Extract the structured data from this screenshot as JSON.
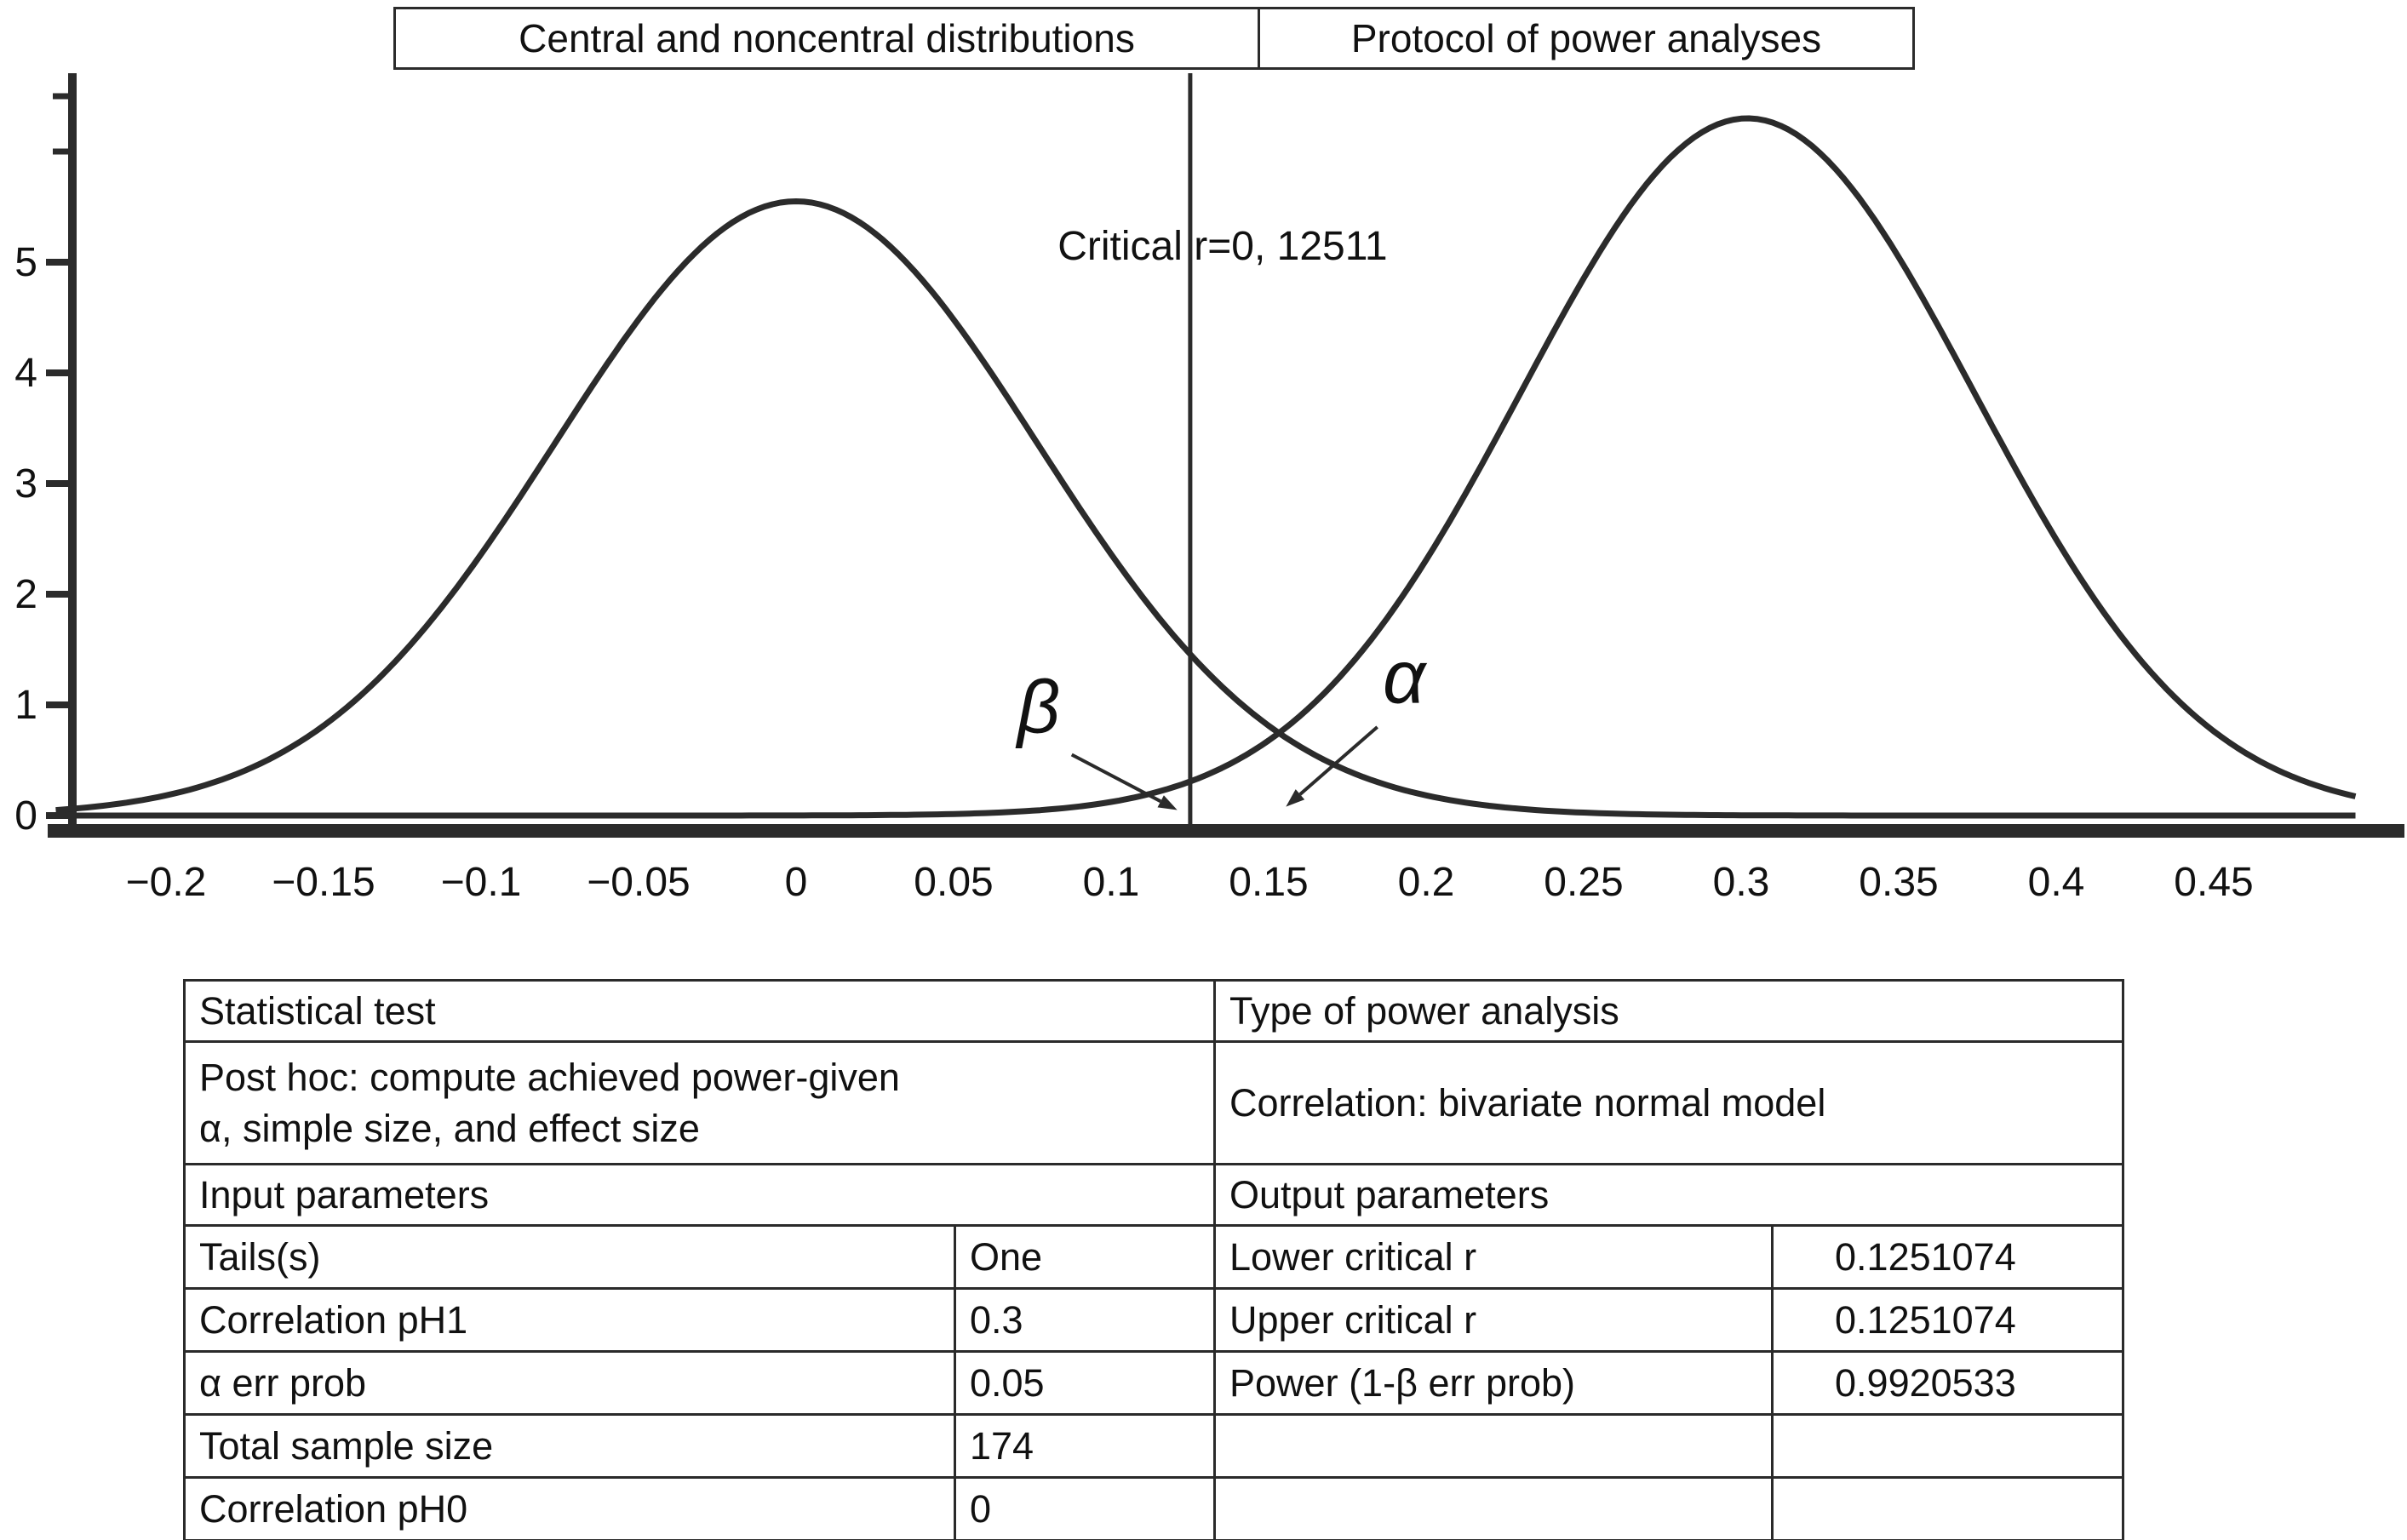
{
  "tabs": [
    {
      "label": "Central and noncentral distributions"
    },
    {
      "label": "Protocol of power analyses"
    }
  ],
  "chart_data": {
    "type": "line",
    "title": "Central and noncentral distributions",
    "xlabel": "",
    "ylabel": "",
    "xlim": [
      -0.235,
      0.495
    ],
    "ylim": [
      0,
      6.6
    ],
    "grid": false,
    "legend": "none",
    "color": "#2b2b2b",
    "x_ticks": [
      -0.2,
      -0.15,
      -0.1,
      -0.05,
      0,
      0.05,
      0.1,
      0.15,
      0.2,
      0.25,
      0.3,
      0.35,
      0.4,
      0.45
    ],
    "x_tick_labels": [
      "−0.2",
      "−0.15",
      "−0.1",
      "−0.05",
      "0",
      "0.05",
      "0.1",
      "0.15",
      "0.2",
      "0.25",
      "0.3",
      "0.35",
      "0.4",
      "0.45"
    ],
    "y_ticks": [
      0,
      1,
      2,
      3,
      4,
      5
    ],
    "y_minor_ticks": [
      6,
      6.5
    ],
    "series": [
      {
        "name": "central-distribution-h0",
        "shape": "gaussian",
        "mean": 0,
        "sd": 0.0765,
        "peak": 5.55
      },
      {
        "name": "noncentral-distribution-h1",
        "shape": "gaussian",
        "mean": 0.302,
        "sd": 0.072,
        "peak": 6.3
      }
    ],
    "critical_line": {
      "x": 0.1251074,
      "label": "Critical r=0, 12511"
    },
    "annotations": [
      {
        "text": "β",
        "x": 0.077,
        "y": 0.75,
        "pointer": {
          "from": [
            0.0875,
            0.55
          ],
          "to": [
            0.121,
            0.05
          ]
        }
      },
      {
        "text": "α",
        "x": 0.193,
        "y": 1.02,
        "pointer": {
          "from": [
            0.1845,
            0.8
          ],
          "to": [
            0.1555,
            0.08
          ]
        }
      }
    ]
  },
  "table": {
    "left_header": "Statistical test",
    "right_header": "Type of power analysis",
    "test_description": "Post hoc: compute achieved power-given\nα, simple size, and effect size",
    "analysis_type": "Correlation: bivariate normal model",
    "input_header": "Input parameters",
    "output_header": "Output parameters",
    "inputs": [
      {
        "label": "Tails(s)",
        "value": "One"
      },
      {
        "label": "Correlation pH1",
        "value": "0.3"
      },
      {
        "label": "α err prob",
        "value": "0.05"
      },
      {
        "label": "Total sample size",
        "value": "174"
      },
      {
        "label": "Correlation pH0",
        "value": "0"
      }
    ],
    "outputs": [
      {
        "label": "Lower critical r",
        "value": "0.1251074"
      },
      {
        "label": "Upper critical r",
        "value": "0.1251074"
      },
      {
        "label": "Power (1-β err prob)",
        "value": "0.9920533"
      },
      {
        "label": "",
        "value": ""
      },
      {
        "label": "",
        "value": ""
      }
    ],
    "colors": {
      "border": "#2a2a2a",
      "text": "#111111"
    }
  }
}
